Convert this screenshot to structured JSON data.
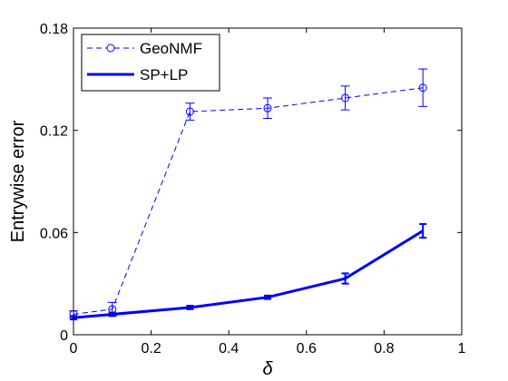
{
  "chart_data": {
    "type": "line",
    "xlabel": "δ",
    "ylabel": "Entrywise error",
    "xlim": [
      0,
      1
    ],
    "ylim": [
      0,
      0.18
    ],
    "xticks": [
      0,
      0.2,
      0.4,
      0.6,
      0.8,
      1
    ],
    "xtick_labels": [
      "0",
      "0.2",
      "0.4",
      "0.6",
      "0.8",
      "1"
    ],
    "yticks": [
      0,
      0.06,
      0.12,
      0.18
    ],
    "ytick_labels": [
      "0",
      "0.06",
      "0.12",
      "0.18"
    ],
    "grid": false,
    "legend_position": "top-left",
    "x": [
      0,
      0.1,
      0.3,
      0.5,
      0.7,
      0.9
    ],
    "series": [
      {
        "name": "GeoNMF",
        "values": [
          0.012,
          0.015,
          0.131,
          0.133,
          0.139,
          0.145
        ],
        "errors": [
          0.002,
          0.004,
          0.005,
          0.006,
          0.007,
          0.011
        ],
        "color": "#0000ff",
        "line_style": "dashed",
        "marker": "circle"
      },
      {
        "name": "SP+LP",
        "values": [
          0.01,
          0.012,
          0.016,
          0.022,
          0.033,
          0.061
        ],
        "errors": [
          0.001,
          0.001,
          0.001,
          0.001,
          0.003,
          0.004
        ],
        "color": "#0000ff",
        "line_style": "solid",
        "marker": "none"
      }
    ]
  }
}
